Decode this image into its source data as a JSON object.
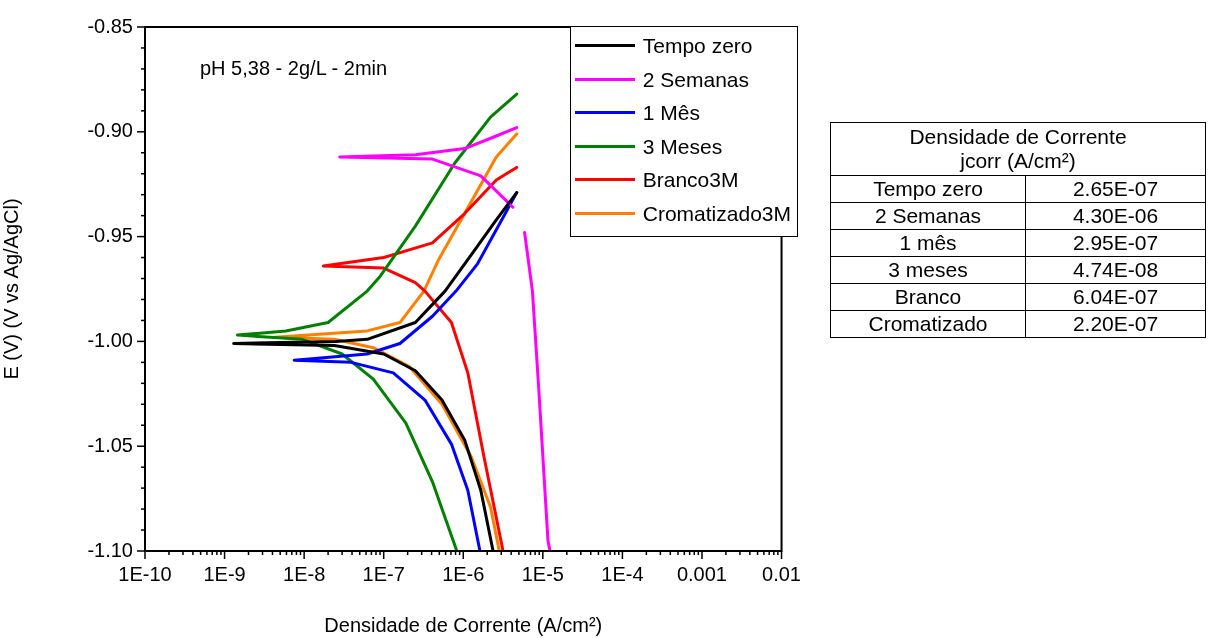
{
  "chart_data": [
    {
      "type": "line",
      "xlabel": "Densidade de Corrente (A/cm²)",
      "ylabel": "E (V) (V vs Ag/AgCl)",
      "log": "x",
      "grid": false,
      "legend": "top right",
      "marker": "none",
      "line_style": "solid",
      "annotations": [
        "pH 5,38 - 2g/L - 2min"
      ],
      "xlim": [
        1e-10,
        0.01
      ],
      "ylim": [
        -1.1,
        -0.85
      ],
      "xticks": [
        {
          "value": 1e-10,
          "label": "1E-10"
        },
        {
          "value": 2e-10,
          "label": null
        },
        {
          "value": 3e-10,
          "label": null
        },
        {
          "value": 4e-10,
          "label": null
        },
        {
          "value": 5e-10,
          "label": null
        },
        {
          "value": 6e-10,
          "label": null
        },
        {
          "value": 7e-10,
          "label": null
        },
        {
          "value": 8e-10,
          "label": null
        },
        {
          "value": 9e-10,
          "label": null
        },
        {
          "value": 1e-09,
          "label": "1E-9"
        },
        {
          "value": 2e-09,
          "label": null
        },
        {
          "value": 3e-09,
          "label": null
        },
        {
          "value": 4e-09,
          "label": null
        },
        {
          "value": 5e-09,
          "label": null
        },
        {
          "value": 6e-09,
          "label": null
        },
        {
          "value": 7e-09,
          "label": null
        },
        {
          "value": 8e-09,
          "label": null
        },
        {
          "value": 9e-09,
          "label": null
        },
        {
          "value": 1e-08,
          "label": "1E-8"
        },
        {
          "value": 2e-08,
          "label": null
        },
        {
          "value": 3e-08,
          "label": null
        },
        {
          "value": 4e-08,
          "label": null
        },
        {
          "value": 5e-08,
          "label": null
        },
        {
          "value": 6e-08,
          "label": null
        },
        {
          "value": 7e-08,
          "label": null
        },
        {
          "value": 8e-08,
          "label": null
        },
        {
          "value": 9e-08,
          "label": null
        },
        {
          "value": 1e-07,
          "label": "1E-7"
        },
        {
          "value": 2e-07,
          "label": null
        },
        {
          "value": 3e-07,
          "label": null
        },
        {
          "value": 4e-07,
          "label": null
        },
        {
          "value": 5e-07,
          "label": null
        },
        {
          "value": 6e-07,
          "label": null
        },
        {
          "value": 7e-07,
          "label": null
        },
        {
          "value": 8e-07,
          "label": null
        },
        {
          "value": 9e-07,
          "label": null
        },
        {
          "value": 1e-06,
          "label": "1E-6"
        },
        {
          "value": 2e-06,
          "label": null
        },
        {
          "value": 3e-06,
          "label": null
        },
        {
          "value": 4e-06,
          "label": null
        },
        {
          "value": 5e-06,
          "label": null
        },
        {
          "value": 6e-06,
          "label": null
        },
        {
          "value": 7e-06,
          "label": null
        },
        {
          "value": 8e-06,
          "label": null
        },
        {
          "value": 9e-06,
          "label": null
        },
        {
          "value": 1e-05,
          "label": "1E-5"
        },
        {
          "value": 2e-05,
          "label": null
        },
        {
          "value": 3e-05,
          "label": null
        },
        {
          "value": 4e-05,
          "label": null
        },
        {
          "value": 5e-05,
          "label": null
        },
        {
          "value": 6e-05,
          "label": null
        },
        {
          "value": 7e-05,
          "label": null
        },
        {
          "value": 8e-05,
          "label": null
        },
        {
          "value": 9e-05,
          "label": null
        },
        {
          "value": 0.0001,
          "label": "1E-4"
        },
        {
          "value": 0.0002,
          "label": null
        },
        {
          "value": 0.0003,
          "label": null
        },
        {
          "value": 0.0004,
          "label": null
        },
        {
          "value": 0.0005,
          "label": null
        },
        {
          "value": 0.0006,
          "label": null
        },
        {
          "value": 0.0007,
          "label": null
        },
        {
          "value": 0.0008,
          "label": null
        },
        {
          "value": 0.0009,
          "label": null
        },
        {
          "value": 0.001,
          "label": "0.001"
        },
        {
          "value": 0.002,
          "label": null
        },
        {
          "value": 0.003,
          "label": null
        },
        {
          "value": 0.004,
          "label": null
        },
        {
          "value": 0.005,
          "label": null
        },
        {
          "value": 0.006,
          "label": null
        },
        {
          "value": 0.007,
          "label": null
        },
        {
          "value": 0.008,
          "label": null
        },
        {
          "value": 0.009,
          "label": null
        },
        {
          "value": 0.01,
          "label": "0.01"
        }
      ],
      "yticks": [
        {
          "value": -1.1,
          "label": "-1.10"
        },
        {
          "value": -1.09,
          "label": null
        },
        {
          "value": -1.08,
          "label": null
        },
        {
          "value": -1.07,
          "label": null
        },
        {
          "value": -1.06,
          "label": null
        },
        {
          "value": -1.05,
          "label": "-1.05"
        },
        {
          "value": -1.04,
          "label": null
        },
        {
          "value": -1.03,
          "label": null
        },
        {
          "value": -1.02,
          "label": null
        },
        {
          "value": -1.01,
          "label": null
        },
        {
          "value": -1.0,
          "label": "-1.00"
        },
        {
          "value": -0.99,
          "label": null
        },
        {
          "value": -0.98,
          "label": null
        },
        {
          "value": -0.97,
          "label": null
        },
        {
          "value": -0.96,
          "label": null
        },
        {
          "value": -0.95,
          "label": "-0.95"
        },
        {
          "value": -0.94,
          "label": null
        },
        {
          "value": -0.93,
          "label": null
        },
        {
          "value": -0.92,
          "label": null
        },
        {
          "value": -0.91,
          "label": null
        },
        {
          "value": -0.9,
          "label": "-0.90"
        },
        {
          "value": -0.89,
          "label": null
        },
        {
          "value": -0.88,
          "label": null
        },
        {
          "value": -0.87,
          "label": null
        },
        {
          "value": -0.86,
          "label": null
        },
        {
          "value": -0.85,
          "label": "-0.85"
        }
      ],
      "series": [
        {
          "name": "Tempo zero",
          "color": "#000000",
          "x": [
            2.37e-06,
            1.66e-06,
            1.04e-06,
            5.4e-07,
            2.5e-07,
            1e-07,
            2.4e-08,
            1.3e-09,
            2.5e-08,
            6.2e-08,
            2.5e-07,
            5.9e-07,
            1.14e-06,
            2.6e-06,
            4.7e-06
          ],
          "values": [
            -1.1,
            -1.071,
            -1.047,
            -1.028,
            -1.014,
            -1.006,
            -1.002,
            -1.001,
            -1.0,
            -0.999,
            -0.991,
            -0.976,
            -0.961,
            -0.942,
            -0.929
          ]
        },
        {
          "name": "2 Semanas",
          "color": "#ff00ff",
          "x": [
            1.23e-05,
            1.16e-05,
            8.9e-06,
            7.4e-06,
            5.9e-06,
            5e-06,
            4.2e-06,
            1.66e-06,
            4.1e-07,
            2.8e-08,
            2.5e-07,
            1.04e-06,
            2.6e-06,
            4.7e-06
          ],
          "values": [
            -1.1,
            -1.095,
            -1.023,
            -0.976,
            -0.948,
            null,
            -0.936,
            -0.921,
            -0.913,
            -0.912,
            -0.911,
            -0.908,
            -0.902,
            -0.898
          ]
        },
        {
          "name": "1 Mês",
          "color": "#0000ff",
          "x": [
            1.62e-06,
            1.14e-06,
            7.1e-07,
            3.3e-07,
            1.32e-07,
            3.9e-08,
            7.5e-09,
            6.2e-08,
            1.6e-07,
            4.1e-07,
            8.1e-07,
            1.51e-06,
            4.7e-06
          ],
          "values": [
            -1.1,
            -1.071,
            -1.049,
            -1.028,
            -1.015,
            -1.01,
            -1.009,
            -1.006,
            -1.001,
            -0.988,
            -0.976,
            -0.963,
            -0.929
          ]
        },
        {
          "name": "3 Meses",
          "color": "#008000",
          "x": [
            8.3e-07,
            4.1e-07,
            1.9e-07,
            7.4e-08,
            3e-08,
            9.5e-09,
            1.45e-09,
            5.9e-09,
            2e-08,
            6.2e-08,
            9e-08,
            2.5e-07,
            7.8e-07,
            2.2e-06,
            4.7e-06
          ],
          "values": [
            -1.1,
            -1.067,
            -1.039,
            -1.018,
            -1.006,
            -0.999,
            -0.997,
            -0.995,
            -0.991,
            -0.976,
            -0.969,
            -0.945,
            -0.915,
            -0.893,
            -0.882
          ]
        },
        {
          "name": "Branco3M",
          "color": "#ff0000",
          "x": [
            3.16e-06,
            1.82e-06,
            1.14e-06,
            7.1e-07,
            3.3e-07,
            2.5e-07,
            1e-07,
            1.74e-08,
            1e-07,
            4.1e-07,
            1.04e-06,
            2.6e-06,
            4.7e-06
          ],
          "values": [
            -1.1,
            -1.055,
            -1.015,
            -0.991,
            -0.976,
            -0.972,
            -0.965,
            -0.964,
            -0.96,
            -0.953,
            -0.939,
            -0.923,
            -0.917
          ]
        },
        {
          "name": "Cromatizado3M",
          "color": "#ff8000",
          "x": [
            2.84e-06,
            2.2e-06,
            1.26e-06,
            5.4e-07,
            2.1e-07,
            7.4e-08,
            2.4e-08,
            4.3e-09,
            6.2e-08,
            1.6e-07,
            3.2e-07,
            4.9e-07,
            1.04e-06,
            2.6e-06,
            4.7e-06
          ],
          "values": [
            -1.1,
            -1.079,
            -1.055,
            -1.03,
            -1.012,
            -1.003,
            -0.999,
            -0.998,
            -0.995,
            -0.991,
            -0.976,
            -0.961,
            -0.939,
            -0.912,
            -0.901
          ]
        }
      ]
    },
    {
      "type": "other",
      "title": "Densidade de Corrente",
      "subtitle": "jcorr (A/cm²)",
      "categories": [
        "Tempo zero",
        "2 Semanas",
        "1 mês",
        "3 meses",
        "Branco",
        "Cromatizado"
      ],
      "value_labels": [
        "2.65E-07",
        "4.30E-06",
        "2.95E-07",
        "4.74E-08",
        "6.04E-07",
        "2.20E-07"
      ]
    }
  ]
}
